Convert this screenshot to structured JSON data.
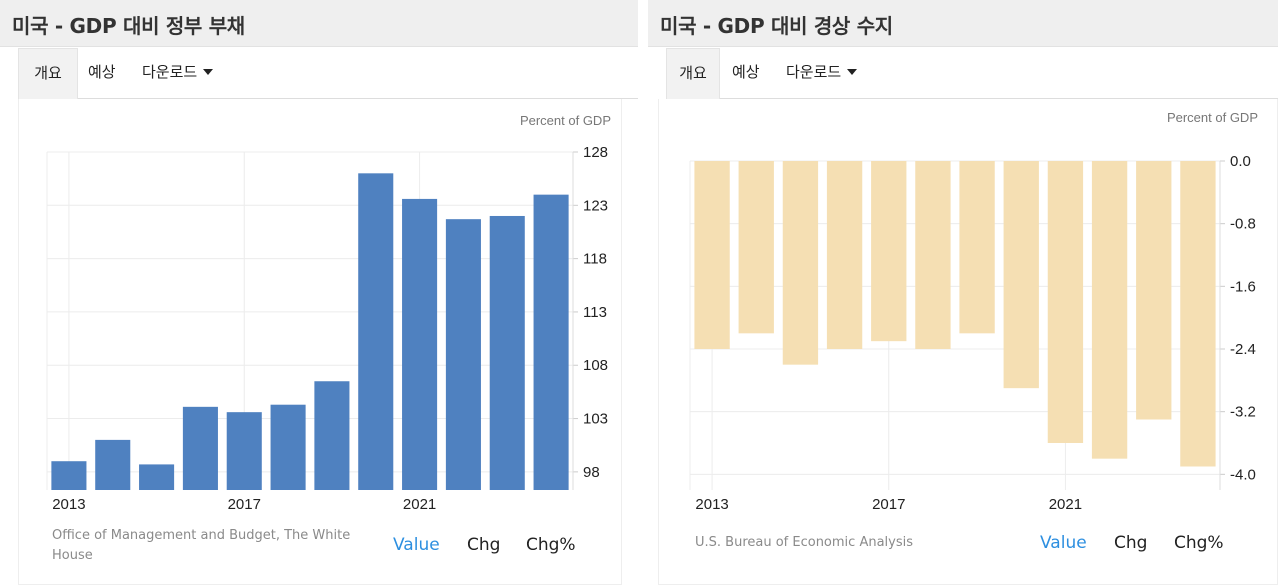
{
  "panels": [
    {
      "title": "미국 - GDP 대비 정부 부채",
      "tabs": [
        "개요",
        "예상",
        "다운로드"
      ],
      "unit_label": "Percent of GDP",
      "source": "Office of Management and Budget, The White House",
      "links": [
        "Value",
        "Chg",
        "Chg%"
      ]
    },
    {
      "title": "미국 - GDP 대비 경상 수지",
      "tabs": [
        "개요",
        "예상",
        "다운로드"
      ],
      "unit_label": "Percent of GDP",
      "source": "U.S. Bureau of Economic Analysis",
      "links": [
        "Value",
        "Chg",
        "Chg%"
      ]
    }
  ],
  "colors": {
    "debt_bar": "#4f81c0",
    "ca_bar": "#f5dfb3",
    "link_active": "#2d8fe0"
  },
  "chart_data": [
    {
      "type": "bar",
      "title": "미국 - GDP 대비 정부 부채",
      "ylabel": "Percent of GDP",
      "categories": [
        "2013",
        "2014",
        "2015",
        "2016",
        "2017",
        "2018",
        "2019",
        "2020",
        "2021",
        "2022",
        "2023",
        "2024"
      ],
      "values": [
        99.0,
        101.0,
        98.7,
        104.1,
        103.6,
        104.3,
        106.5,
        126.0,
        123.6,
        121.7,
        122.0,
        124.0
      ],
      "x_ticks": [
        "2013",
        "2017",
        "2021"
      ],
      "y_ticks": [
        98,
        103,
        108,
        113,
        118,
        123,
        128
      ],
      "ylim": [
        96.3,
        128
      ],
      "grid": true,
      "axis_position": "right"
    },
    {
      "type": "bar",
      "title": "미국 - GDP 대비 경상 수지",
      "ylabel": "Percent of GDP",
      "categories": [
        "2013",
        "2014",
        "2015",
        "2016",
        "2017",
        "2018",
        "2019",
        "2020",
        "2021",
        "2022",
        "2023",
        "2024"
      ],
      "values": [
        -2.4,
        -2.2,
        -2.6,
        -2.4,
        -2.3,
        -2.4,
        -2.2,
        -2.9,
        -3.6,
        -3.8,
        -3.3,
        -3.9
      ],
      "x_ticks": [
        "2013",
        "2017",
        "2021"
      ],
      "y_ticks": [
        "0.0",
        "-0.8",
        "-1.6",
        "-2.4",
        "-3.2",
        "-4.0"
      ],
      "ylim": [
        -4.2,
        0.0
      ],
      "grid": true,
      "axis_position": "right"
    }
  ]
}
